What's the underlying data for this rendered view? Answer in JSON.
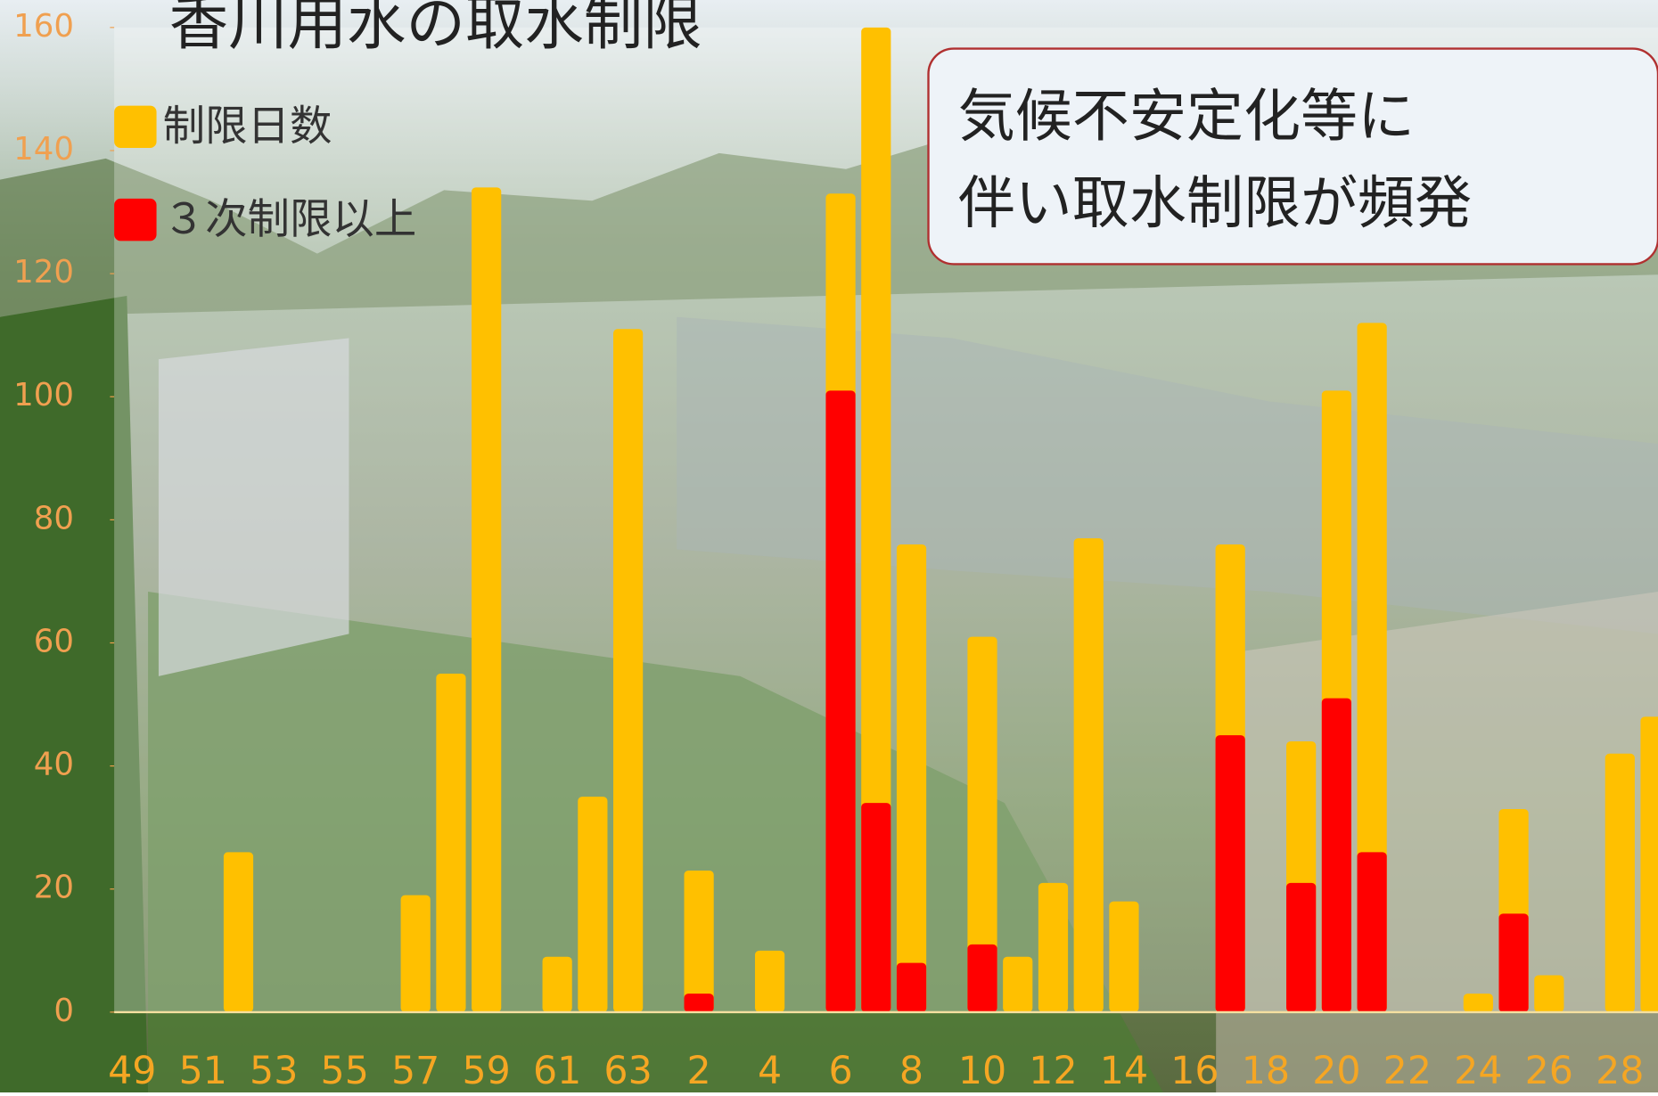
{
  "chart_data": {
    "type": "bar",
    "title": "香川用水の取水制限",
    "annotation": [
      "気候不安定化等に",
      "伴い取水制限が頻発"
    ],
    "categories": [
      "49",
      null,
      "51",
      null,
      "53",
      null,
      "55",
      null,
      "57",
      null,
      "59",
      null,
      "61",
      null,
      "63",
      null,
      "2",
      null,
      "4",
      null,
      "6",
      null,
      "8",
      null,
      "10",
      null,
      "12",
      null,
      "14",
      null,
      "16",
      null,
      "18",
      null,
      "20",
      null,
      "22",
      null,
      "24",
      null,
      "26",
      null,
      "28",
      null
    ],
    "series": [
      {
        "name": "制限日数",
        "color": "#ffc000",
        "values": [
          0,
          0,
          0,
          26,
          0,
          0,
          0,
          0,
          19,
          55,
          134,
          0,
          9,
          35,
          111,
          0,
          23,
          0,
          10,
          0,
          133,
          160,
          76,
          0,
          61,
          9,
          21,
          77,
          18,
          0,
          0,
          76,
          0,
          44,
          101,
          112,
          0,
          0,
          3,
          33,
          6,
          0,
          42,
          48
        ]
      },
      {
        "name": "３次制限以上",
        "color": "#ff0000",
        "values": [
          0,
          0,
          0,
          0,
          0,
          0,
          0,
          0,
          0,
          0,
          0,
          0,
          0,
          0,
          0,
          0,
          3,
          0,
          0,
          0,
          101,
          34,
          8,
          0,
          11,
          0,
          0,
          0,
          0,
          0,
          0,
          45,
          0,
          21,
          51,
          26,
          0,
          0,
          0,
          16,
          0,
          0,
          0,
          0
        ]
      }
    ],
    "ylim": [
      0,
      160
    ],
    "yticks": [
      0,
      20,
      40,
      60,
      80,
      100,
      120,
      140,
      160
    ]
  }
}
